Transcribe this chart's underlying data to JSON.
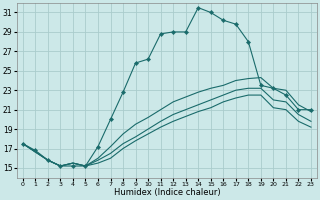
{
  "xlabel": "Humidex (Indice chaleur)",
  "background_color": "#cce8e8",
  "grid_color": "#aacccc",
  "line_color": "#1a6b6b",
  "xlim": [
    -0.5,
    23.5
  ],
  "ylim": [
    14.0,
    32.0
  ],
  "yticks": [
    15,
    17,
    19,
    21,
    23,
    25,
    27,
    29,
    31
  ],
  "xticks": [
    0,
    1,
    2,
    3,
    4,
    5,
    6,
    7,
    8,
    9,
    10,
    11,
    12,
    13,
    14,
    15,
    16,
    17,
    18,
    19,
    20,
    21,
    22,
    23
  ],
  "xtick_labels": [
    "0",
    "1",
    "2",
    "3",
    "4",
    "5",
    "6",
    "7",
    "8",
    "9",
    "10",
    "11",
    "12",
    "13",
    "14",
    "15",
    "16",
    "17",
    "18",
    "19",
    "20",
    "21",
    "22",
    "23"
  ],
  "series1_x": [
    0,
    1,
    2,
    3,
    4,
    5,
    6,
    7,
    8,
    9,
    10,
    11,
    12,
    13,
    14,
    15,
    16,
    17,
    18,
    19,
    20,
    21,
    22,
    23
  ],
  "series1_y": [
    17.5,
    16.8,
    15.8,
    15.2,
    15.2,
    15.2,
    17.2,
    20.0,
    22.8,
    25.8,
    26.2,
    28.8,
    29.0,
    29.0,
    31.5,
    31.0,
    30.2,
    29.8,
    28.0,
    23.5,
    23.2,
    22.5,
    21.0,
    21.0
  ],
  "series2_x": [
    0,
    2,
    3,
    4,
    5,
    6,
    7,
    8,
    9,
    10,
    11,
    12,
    13,
    14,
    15,
    16,
    17,
    18,
    19,
    20,
    21,
    22,
    23
  ],
  "series2_y": [
    17.5,
    15.8,
    15.2,
    15.5,
    15.2,
    16.0,
    17.2,
    18.5,
    19.5,
    20.2,
    21.0,
    21.8,
    22.3,
    22.8,
    23.2,
    23.5,
    24.0,
    24.2,
    24.3,
    23.2,
    23.0,
    21.5,
    20.8
  ],
  "series3_x": [
    0,
    2,
    3,
    4,
    5,
    6,
    7,
    8,
    9,
    10,
    11,
    12,
    13,
    14,
    15,
    16,
    17,
    18,
    19,
    20,
    21,
    22,
    23
  ],
  "series3_y": [
    17.5,
    15.8,
    15.2,
    15.5,
    15.2,
    15.8,
    16.5,
    17.5,
    18.2,
    19.0,
    19.8,
    20.5,
    21.0,
    21.5,
    22.0,
    22.5,
    23.0,
    23.2,
    23.2,
    22.0,
    21.8,
    20.5,
    19.8
  ],
  "series4_x": [
    0,
    2,
    3,
    4,
    5,
    6,
    7,
    8,
    9,
    10,
    11,
    12,
    13,
    14,
    15,
    16,
    17,
    18,
    19,
    20,
    21,
    22,
    23
  ],
  "series4_y": [
    17.5,
    15.8,
    15.2,
    15.5,
    15.2,
    15.5,
    16.0,
    17.0,
    17.8,
    18.5,
    19.2,
    19.8,
    20.3,
    20.8,
    21.2,
    21.8,
    22.2,
    22.5,
    22.5,
    21.2,
    21.0,
    19.8,
    19.2
  ]
}
